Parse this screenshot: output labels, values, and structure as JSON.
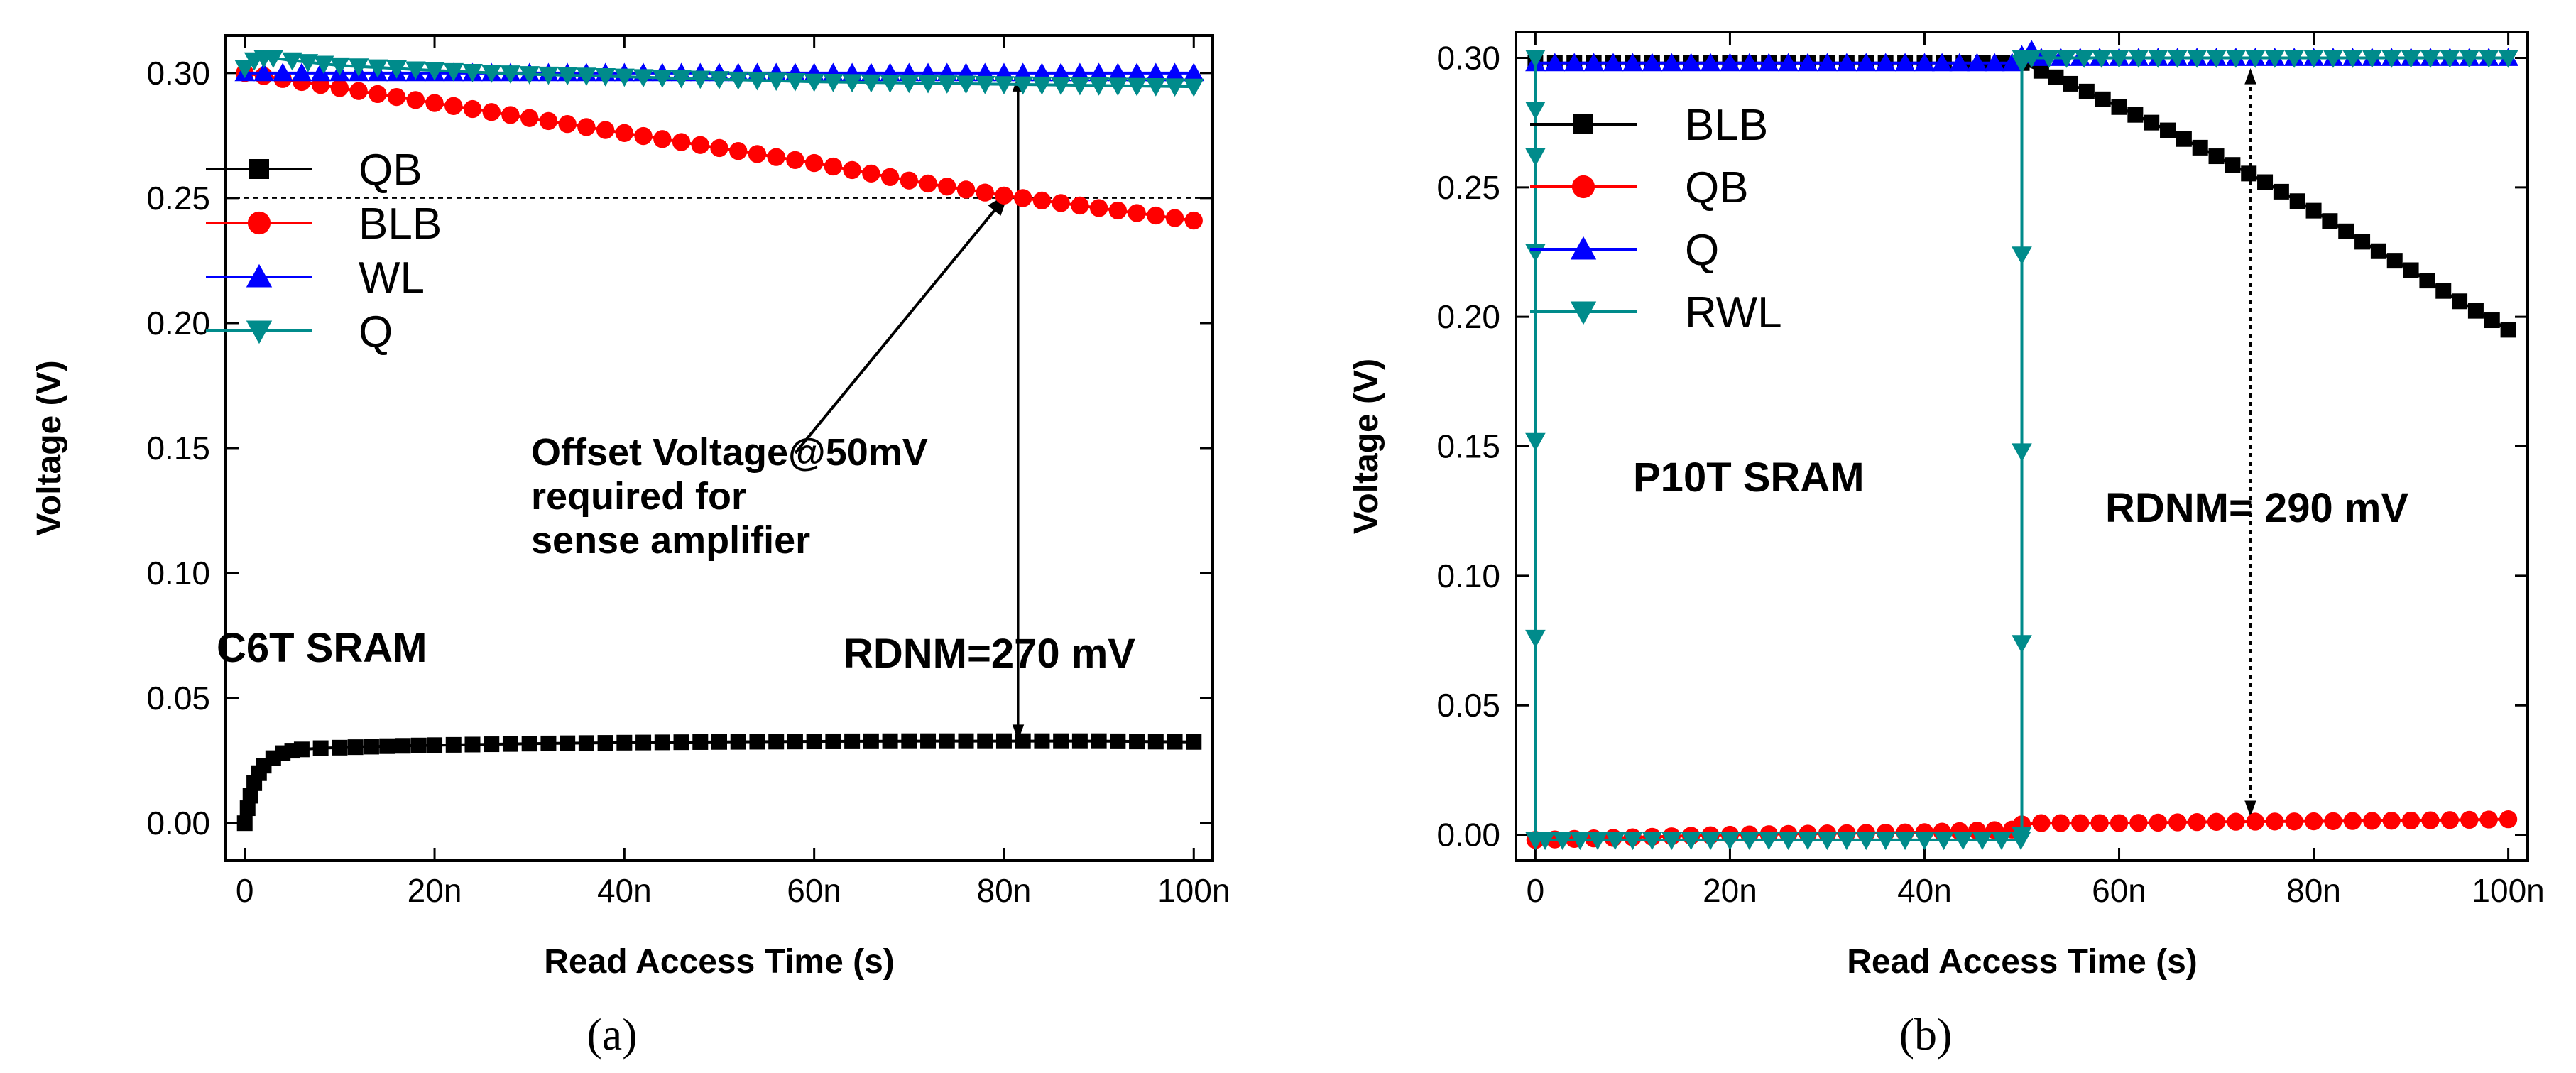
{
  "chart_data": [
    {
      "id": "a",
      "type": "line",
      "subfigure_label": "(a)",
      "title": "C6T SRAM",
      "xlabel": "Read Access Time (s)",
      "ylabel": "Voltage (V)",
      "xlim": [
        -2,
        102
      ],
      "ylim": [
        -0.015,
        0.315
      ],
      "xticks": [
        0,
        20,
        40,
        60,
        80,
        100
      ],
      "xtick_labels": [
        "0",
        "20n",
        "40n",
        "60n",
        "80n",
        "100n"
      ],
      "yticks": [
        0.0,
        0.05,
        0.1,
        0.15,
        0.2,
        0.25,
        0.3
      ],
      "ytick_labels": [
        "0.00",
        "0.05",
        "0.10",
        "0.15",
        "0.20",
        "0.25",
        "0.30"
      ],
      "legend_position": "upper-left",
      "series": [
        {
          "name": "QB",
          "color": "#000000",
          "marker": "square",
          "x": [
            0,
            0.3,
            0.6,
            1,
            1.5,
            2,
            3,
            4,
            5,
            6,
            8,
            10,
            15,
            20,
            30,
            40,
            50,
            60,
            70,
            80,
            90,
            100
          ],
          "y": [
            0.0,
            0.006,
            0.011,
            0.016,
            0.02,
            0.023,
            0.026,
            0.028,
            0.029,
            0.0295,
            0.03,
            0.0302,
            0.0308,
            0.0312,
            0.0318,
            0.0322,
            0.0325,
            0.0327,
            0.0328,
            0.0328,
            0.0328,
            0.0325
          ]
        },
        {
          "name": "BLB",
          "color": "#ff0000",
          "marker": "circle",
          "x": [
            0,
            10,
            20,
            30,
            40,
            50,
            60,
            70,
            80,
            90,
            100
          ],
          "y": [
            0.3,
            0.294,
            0.288,
            0.282,
            0.276,
            0.27,
            0.264,
            0.257,
            0.251,
            0.246,
            0.241
          ]
        },
        {
          "name": "WL",
          "color": "#0000ff",
          "marker": "triangle-up",
          "x": [
            0,
            10,
            20,
            30,
            40,
            50,
            60,
            70,
            80,
            90,
            100
          ],
          "y": [
            0.3,
            0.3,
            0.3,
            0.3,
            0.3,
            0.3,
            0.3,
            0.3,
            0.3,
            0.3,
            0.3
          ]
        },
        {
          "name": "Q",
          "color": "#008b8b",
          "marker": "triangle-down",
          "x": [
            0,
            1,
            2,
            3,
            5,
            10,
            20,
            30,
            40,
            50,
            60,
            70,
            80,
            90,
            100
          ],
          "y": [
            0.302,
            0.305,
            0.306,
            0.306,
            0.305,
            0.303,
            0.301,
            0.2995,
            0.2985,
            0.2975,
            0.2965,
            0.296,
            0.2955,
            0.295,
            0.2945
          ]
        }
      ],
      "annotations": {
        "offset_text": [
          "Offset Voltage@50mV",
          "required for",
          "sense amplifier"
        ],
        "rdnm_text": "RDNM=270 mV",
        "dashed_line_y": 0.25,
        "rdnm_x": 81.5,
        "rdnm_y_top": 0.299,
        "rdnm_y_bottom": 0.033,
        "offset_arrow_from": [
          58,
          0.148
        ],
        "offset_arrow_to": [
          80.5,
          0.252
        ]
      }
    },
    {
      "id": "b",
      "type": "line",
      "subfigure_label": "(b)",
      "title": "P10T SRAM",
      "xlabel": "Read Access Time (s)",
      "ylabel": "Voltage (V)",
      "xlim": [
        -2,
        102
      ],
      "ylim": [
        -0.01,
        0.31
      ],
      "xticks": [
        0,
        20,
        40,
        60,
        80,
        100
      ],
      "xtick_labels": [
        "0",
        "20n",
        "40n",
        "60n",
        "80n",
        "100n"
      ],
      "yticks": [
        0.0,
        0.05,
        0.1,
        0.15,
        0.2,
        0.25,
        0.3
      ],
      "ytick_labels": [
        "0.00",
        "0.05",
        "0.10",
        "0.15",
        "0.20",
        "0.25",
        "0.30"
      ],
      "legend_position": "upper-left",
      "series": [
        {
          "name": "BLB",
          "color": "#000000",
          "marker": "square",
          "x": [
            0,
            10,
            20,
            30,
            40,
            50,
            52,
            55,
            60,
            65,
            70,
            75,
            80,
            85,
            90,
            95,
            100
          ],
          "y": [
            0.298,
            0.298,
            0.298,
            0.298,
            0.298,
            0.298,
            0.295,
            0.29,
            0.281,
            0.272,
            0.262,
            0.252,
            0.241,
            0.229,
            0.218,
            0.206,
            0.195
          ]
        },
        {
          "name": "QB",
          "color": "#ff0000",
          "marker": "circle",
          "x": [
            0,
            10,
            20,
            30,
            40,
            49,
            50,
            52,
            60,
            70,
            80,
            90,
            100
          ],
          "y": [
            -0.002,
            -0.001,
            0.0,
            0.0005,
            0.001,
            0.002,
            0.004,
            0.0045,
            0.0045,
            0.005,
            0.0052,
            0.0055,
            0.006
          ]
        },
        {
          "name": "Q",
          "color": "#0000ff",
          "marker": "triangle-up",
          "x": [
            0,
            10,
            20,
            30,
            40,
            49,
            50,
            51,
            52,
            60,
            70,
            80,
            90,
            100
          ],
          "y": [
            0.298,
            0.298,
            0.298,
            0.298,
            0.298,
            0.298,
            0.301,
            0.303,
            0.3,
            0.3,
            0.3,
            0.3,
            0.3,
            0.3
          ]
        },
        {
          "name": "RWL",
          "color": "#008b8b",
          "marker": "triangle-down",
          "x": [
            0,
            0,
            0,
            0,
            0,
            0,
            0,
            1,
            10,
            20,
            30,
            40,
            49.9,
            50,
            50,
            50,
            50,
            50,
            50,
            51,
            60,
            70,
            80,
            90,
            100
          ],
          "y": [
            0.3,
            0.28,
            0.262,
            0.225,
            0.152,
            0.076,
            -0.002,
            -0.002,
            -0.002,
            -0.002,
            -0.002,
            -0.002,
            -0.002,
            0.0,
            0.074,
            0.148,
            0.224,
            0.298,
            0.3,
            0.3,
            0.3,
            0.3,
            0.3,
            0.3,
            0.3
          ]
        }
      ],
      "annotations": {
        "rdnm_text": "RDNM= 290 mV",
        "rdnm_x": 73.5,
        "rdnm_y_top": 0.296,
        "rdnm_y_bottom": 0.007
      }
    }
  ]
}
